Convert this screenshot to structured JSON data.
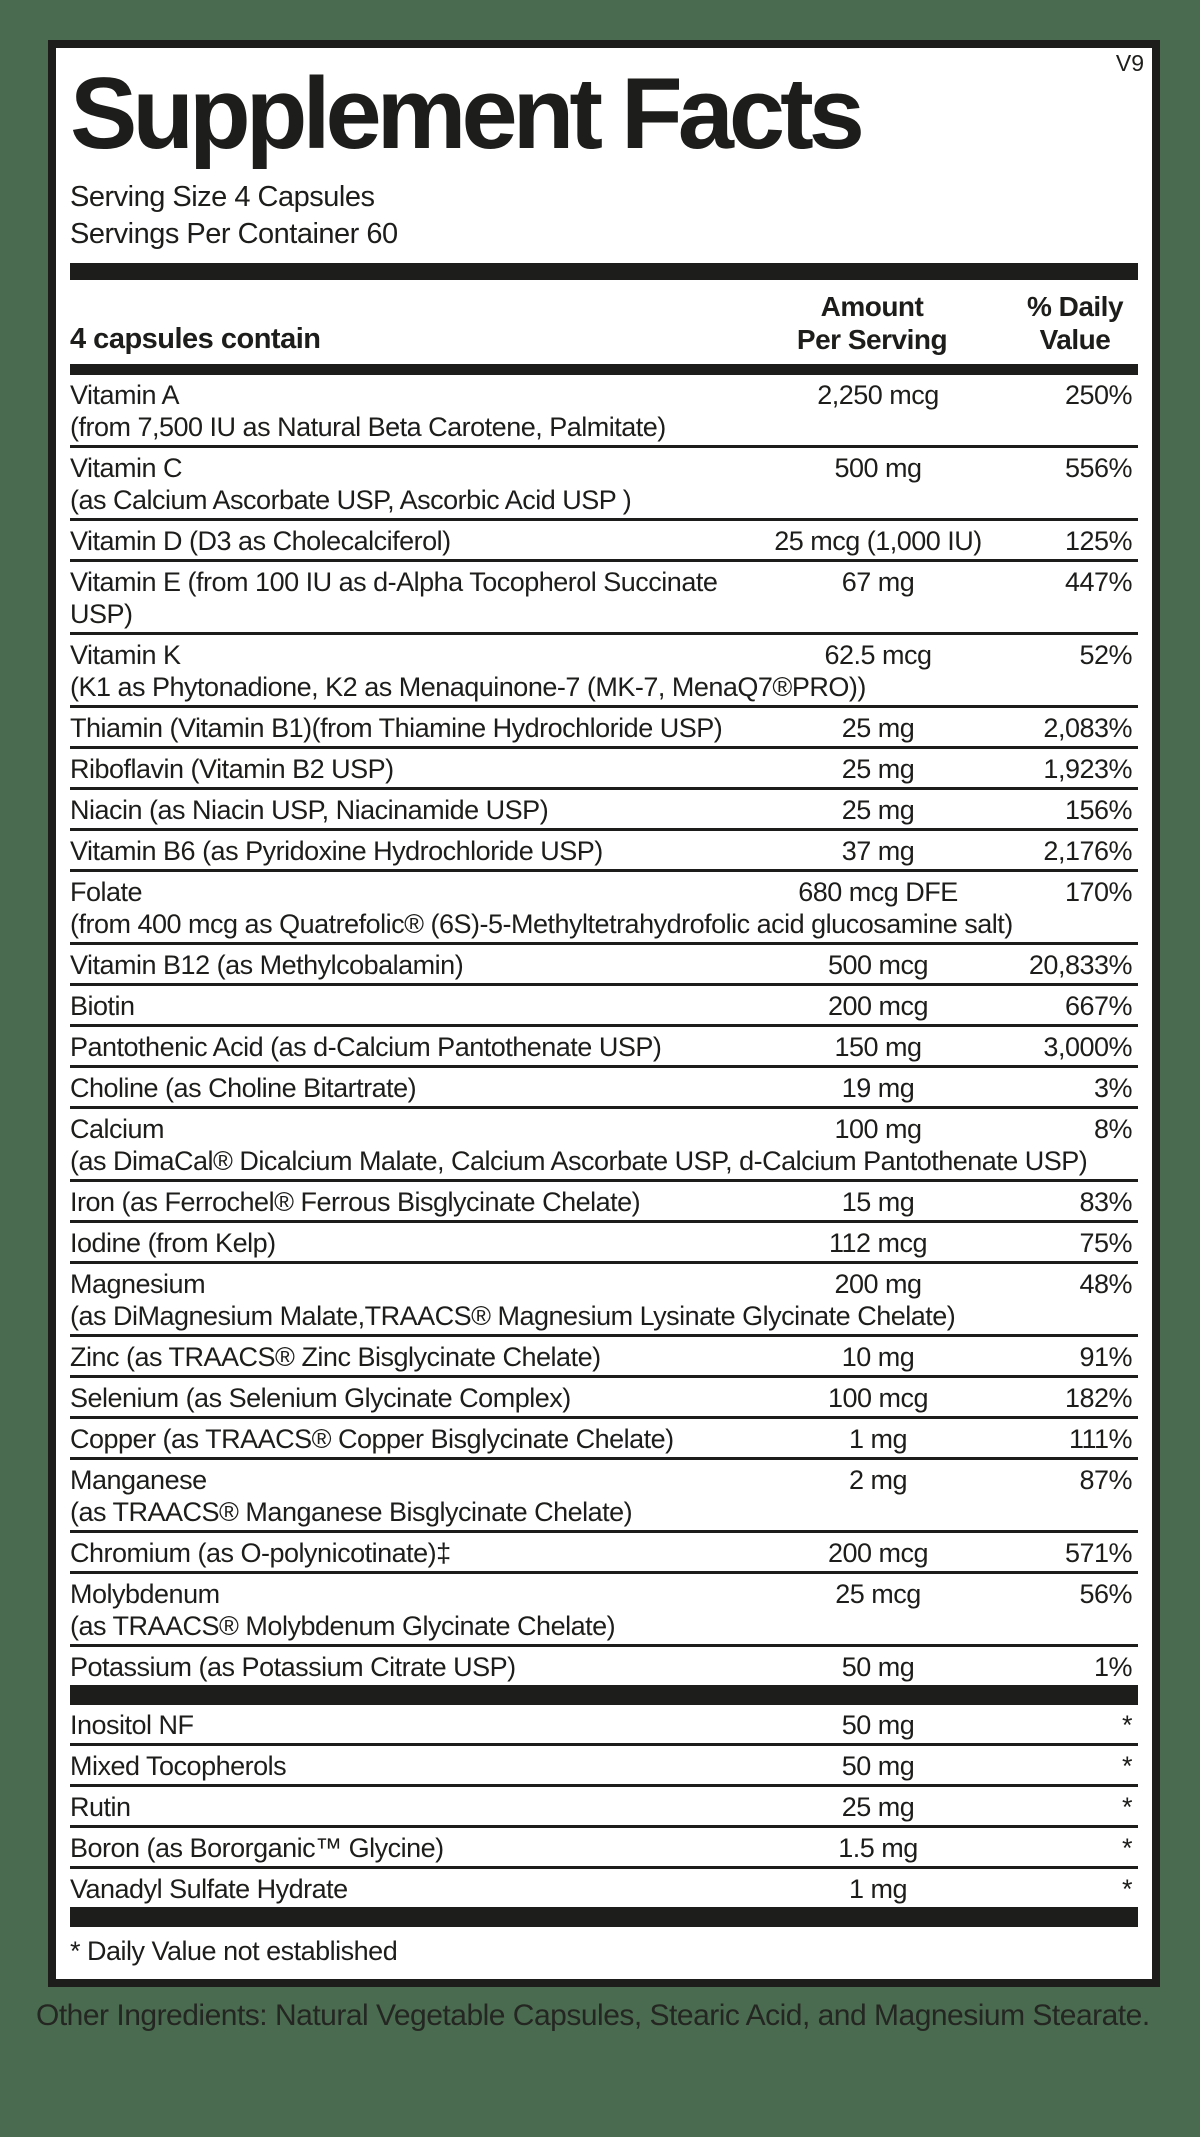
{
  "version": "V9",
  "title": "Supplement Facts",
  "serving": {
    "size": "Serving Size 4 Capsules",
    "per_container": "Servings Per Container 60"
  },
  "header": {
    "col_contains": "4 capsules contain",
    "col_amount_line1": "Amount",
    "col_amount_line2": "Per Serving",
    "col_dv_line1": "% Daily",
    "col_dv_line2": "Value"
  },
  "main_rows": [
    {
      "name": "Vitamin A",
      "sub": "(from 7,500 IU as Natural Beta Carotene, Palmitate)",
      "amount": "2,250 mcg",
      "dv": "250%"
    },
    {
      "name": "Vitamin C",
      "sub": "(as Calcium Ascorbate USP, Ascorbic Acid USP )",
      "amount": "500 mg",
      "dv": "556%"
    },
    {
      "name": "Vitamin D (D3 as Cholecalciferol)",
      "amount": "25 mcg (1,000 IU)",
      "dv": "125%"
    },
    {
      "name": "Vitamin E (from 100 IU as d-Alpha Tocopherol Succinate USP)",
      "amount": "67 mg",
      "dv": "447%"
    },
    {
      "name": "Vitamin K",
      "sub": "(K1 as Phytonadione, K2 as Menaquinone-7 (MK-7, MenaQ7®PRO))",
      "amount": "62.5 mcg",
      "dv": "52%"
    },
    {
      "name": "Thiamin (Vitamin B1)(from Thiamine Hydrochloride USP)",
      "amount": "25 mg",
      "dv": "2,083%"
    },
    {
      "name": "Riboflavin (Vitamin B2 USP)",
      "amount": "25 mg",
      "dv": "1,923%"
    },
    {
      "name": "Niacin (as Niacin USP, Niacinamide USP)",
      "amount": "25 mg",
      "dv": "156%"
    },
    {
      "name": "Vitamin B6 (as Pyridoxine Hydrochloride USP)",
      "amount": "37 mg",
      "dv": "2,176%"
    },
    {
      "name": "Folate",
      "sub": "(from 400 mcg as Quatrefolic® (6S)-5-Methyltetrahydrofolic acid glucosamine salt)",
      "amount": "680 mcg DFE",
      "dv": "170%"
    },
    {
      "name": "Vitamin B12 (as Methylcobalamin)",
      "amount": "500 mcg",
      "dv": "20,833%"
    },
    {
      "name": "Biotin",
      "amount": "200 mcg",
      "dv": "667%"
    },
    {
      "name": "Pantothenic Acid (as d-Calcium Pantothenate USP)",
      "amount": "150 mg",
      "dv": "3,000%"
    },
    {
      "name": "Choline (as Choline Bitartrate)",
      "amount": "19 mg",
      "dv": "3%"
    },
    {
      "name": "Calcium",
      "sub": "(as DimaCal® Dicalcium Malate, Calcium Ascorbate USP, d-Calcium Pantothenate USP)",
      "amount": "100 mg",
      "dv": "8%"
    },
    {
      "name": "Iron (as Ferrochel® Ferrous Bisglycinate Chelate)",
      "amount": "15 mg",
      "dv": "83%"
    },
    {
      "name": "Iodine (from Kelp)",
      "amount": "112 mcg",
      "dv": "75%"
    },
    {
      "name": "Magnesium",
      "sub": "(as DiMagnesium Malate,TRAACS® Magnesium Lysinate Glycinate Chelate)",
      "amount": "200 mg",
      "dv": "48%"
    },
    {
      "name": "Zinc (as TRAACS® Zinc Bisglycinate Chelate)",
      "amount": "10 mg",
      "dv": "91%"
    },
    {
      "name": "Selenium (as Selenium Glycinate Complex)",
      "amount": "100 mcg",
      "dv": "182%"
    },
    {
      "name": "Copper (as TRAACS® Copper Bisglycinate Chelate)",
      "amount": "1 mg",
      "dv": "111%"
    },
    {
      "name": "Manganese",
      "sub": "(as TRAACS® Manganese Bisglycinate Chelate)",
      "amount": "2 mg",
      "dv": "87%"
    },
    {
      "name": "Chromium (as O-polynicotinate)‡",
      "amount": "200 mcg",
      "dv": "571%"
    },
    {
      "name": "Molybdenum",
      "sub": "(as TRAACS® Molybdenum Glycinate Chelate)",
      "amount": "25 mcg",
      "dv": "56%"
    },
    {
      "name": "Potassium (as Potassium Citrate USP)",
      "amount": "50 mg",
      "dv": "1%"
    }
  ],
  "extra_rows": [
    {
      "name": "Inositol NF",
      "amount": "50 mg",
      "dv": "*"
    },
    {
      "name": "Mixed Tocopherols",
      "amount": "50 mg",
      "dv": "*"
    },
    {
      "name": "Rutin",
      "amount": "25 mg",
      "dv": "*"
    },
    {
      "name": "Boron (as Bororganic™ Glycine)",
      "amount": "1.5 mg",
      "dv": "*"
    },
    {
      "name": "Vanadyl Sulfate Hydrate",
      "amount": "1 mg",
      "dv": "*"
    }
  ],
  "footnote": "* Daily Value not established",
  "other_ingredients": "Other Ingredients: Natural Vegetable Capsules, Stearic Acid, and Magnesium Stearate.",
  "colors": {
    "background": "#4a6b4f",
    "label_background": "#ffffff",
    "text": "#1d1d1b"
  }
}
